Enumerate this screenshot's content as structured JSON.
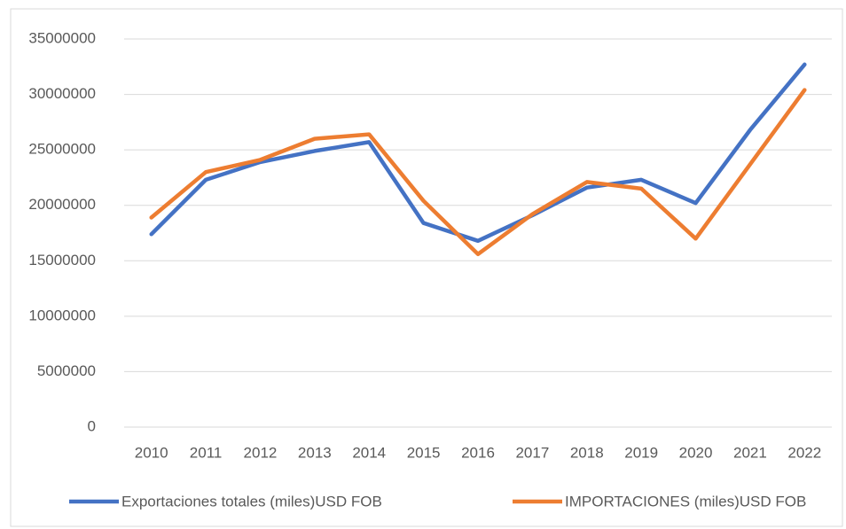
{
  "chart_data": {
    "type": "line",
    "categories": [
      "2010",
      "2011",
      "2012",
      "2013",
      "2014",
      "2015",
      "2016",
      "2017",
      "2018",
      "2019",
      "2020",
      "2021",
      "2022"
    ],
    "series": [
      {
        "name": "Exportaciones totales (miles)USD FOB",
        "color": "#4472c4",
        "values": [
          17400000,
          22300000,
          23900000,
          24900000,
          25700000,
          18400000,
          16800000,
          19100000,
          21600000,
          22300000,
          20200000,
          26800000,
          32700000
        ]
      },
      {
        "name": "IMPORTACIONES (miles)USD FOB",
        "color": "#ed7d31",
        "values": [
          18900000,
          23000000,
          24100000,
          26000000,
          26400000,
          20400000,
          15600000,
          19200000,
          22100000,
          21500000,
          17000000,
          23700000,
          30400000
        ]
      }
    ],
    "ylim": [
      0,
      35000000
    ],
    "yticks": [
      0,
      5000000,
      10000000,
      15000000,
      20000000,
      25000000,
      30000000,
      35000000
    ],
    "grid": true,
    "legend": "bottom"
  }
}
